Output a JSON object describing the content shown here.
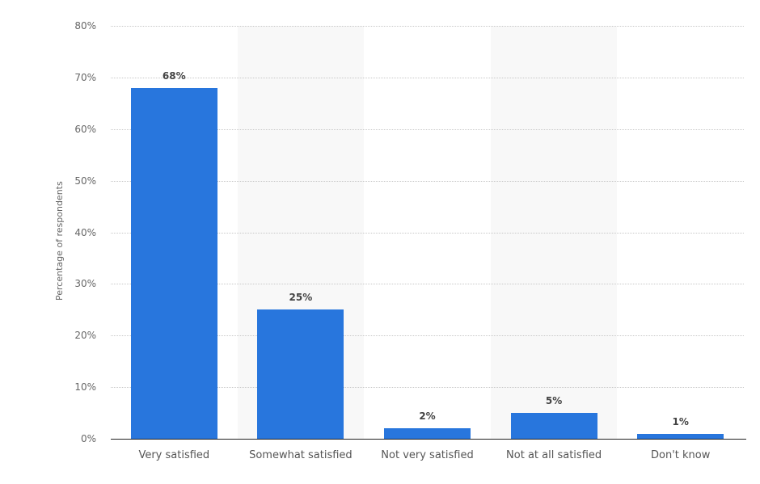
{
  "chart_data": {
    "type": "bar",
    "title": "",
    "xlabel": "",
    "ylabel": "Percentage of respondents",
    "categories": [
      "Very satisfied",
      "Somewhat satisfied",
      "Not very satisfied",
      "Not at all satisfied",
      "Don't know"
    ],
    "values": [
      68,
      25,
      2,
      5,
      1
    ],
    "value_labels": [
      "68%",
      "25%",
      "2%",
      "5%",
      "1%"
    ],
    "ylim": [
      0,
      80
    ],
    "yticks": [
      0,
      10,
      20,
      30,
      40,
      50,
      60,
      70,
      80
    ],
    "ytick_labels": [
      "0%",
      "10%",
      "20%",
      "30%",
      "40%",
      "50%",
      "60%",
      "70%",
      "80%"
    ],
    "grid": true,
    "legend": null,
    "colors": {
      "bar": "#2876dd",
      "band": "#f8f8f8",
      "grid": "#c8c8c8",
      "axis": "#222222"
    }
  }
}
